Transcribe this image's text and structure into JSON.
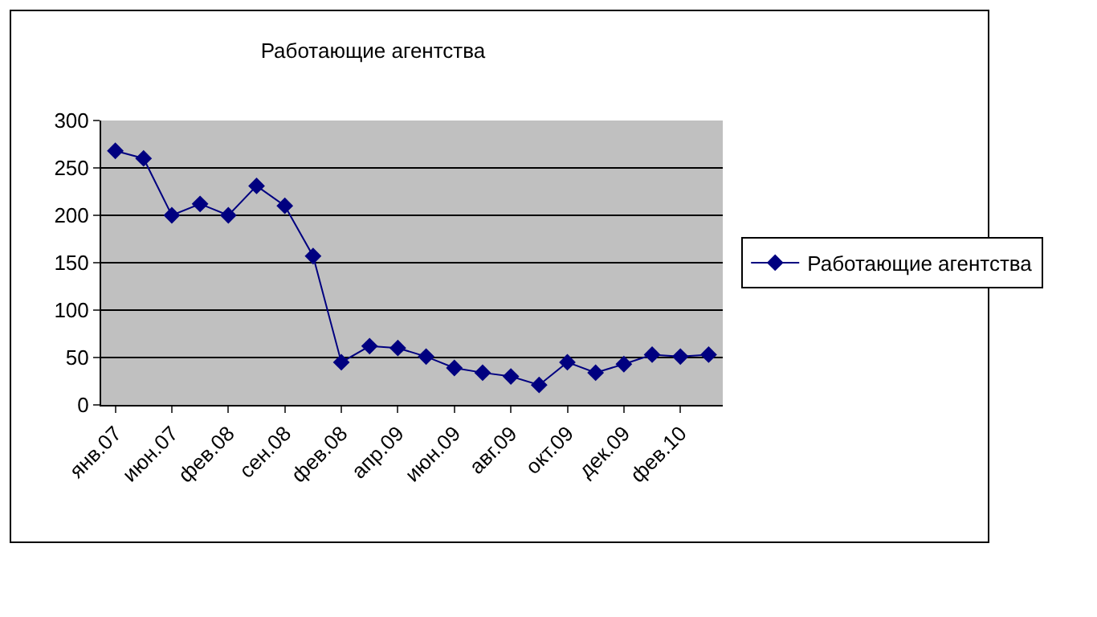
{
  "chart_data": {
    "type": "line",
    "title": "Работающие агентства",
    "categories": [
      "янв.07",
      null,
      "июн.07",
      null,
      "фев.08",
      null,
      "сен.08",
      null,
      "фев.08",
      null,
      "апр.09",
      null,
      "июн.09",
      null,
      "авг.09",
      null,
      "окт.09",
      null,
      "дек.09",
      null,
      "фев.10",
      null
    ],
    "series": [
      {
        "name": "Работающие агентства",
        "color": "#000080",
        "values": [
          268,
          260,
          200,
          212,
          200,
          231,
          210,
          157,
          45,
          62,
          60,
          51,
          39,
          34,
          30,
          21,
          45,
          34,
          43,
          53,
          51,
          53
        ]
      }
    ],
    "ylim": [
      0,
      300
    ],
    "yticks": [
      0,
      50,
      100,
      150,
      200,
      250,
      300
    ],
    "grid": "y",
    "legend": "right",
    "marker": "diamond",
    "line_style": "solid"
  }
}
